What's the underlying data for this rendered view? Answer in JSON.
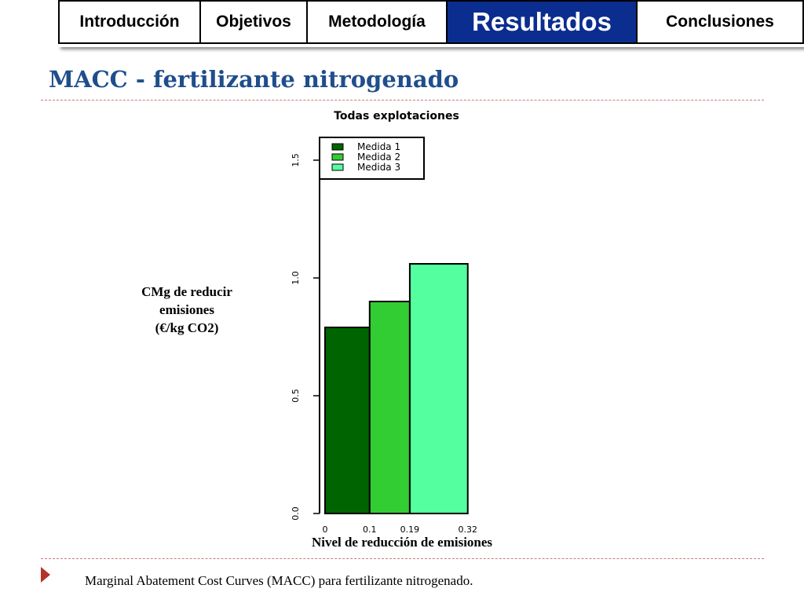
{
  "nav": {
    "tabs": [
      {
        "label": "Introducción",
        "active": false
      },
      {
        "label": "Objetivos",
        "active": false
      },
      {
        "label": "Metodología",
        "active": false
      },
      {
        "label": "Resultados",
        "active": true
      },
      {
        "label": "Conclusiones",
        "active": false
      }
    ]
  },
  "slide": {
    "title": "MACC - fertilizante nitrogenado",
    "ylabel_lines": [
      "CMg de reducir",
      "emisiones",
      "(€/kg CO2)"
    ],
    "xlabel": "Nivel de reducción de emisiones",
    "caption": "Marginal Abatement Cost Curves (MACC) para fertilizante nitrogenado."
  },
  "colors": {
    "title": "#1f4e8c",
    "active_tab": "#0b2d8f",
    "bullet": "#b5332b",
    "rule": "#c97a7a"
  },
  "chart_data": {
    "type": "bar",
    "title": "Todas explotaciones",
    "xlabel": "Nivel de reducción de emisiones",
    "ylabel": "CMg de reducir emisiones (€/kg CO2)",
    "ylim": [
      0,
      1.6
    ],
    "y_ticks": [
      0.0,
      0.5,
      1.0,
      1.5
    ],
    "y_tick_labels": [
      "0.0",
      "0.5",
      "1.0",
      "1.5"
    ],
    "x_ticks": [
      0,
      0.1,
      0.19,
      0.32
    ],
    "x_tick_labels": [
      "0",
      "0.1",
      "0.19",
      "0.32"
    ],
    "legend_position": "top-left",
    "series": [
      {
        "name": "Medida 1",
        "x_start": 0,
        "x_end": 0.1,
        "value": 0.79,
        "color": "#006400"
      },
      {
        "name": "Medida 2",
        "x_start": 0.1,
        "x_end": 0.19,
        "value": 0.9,
        "color": "#32cd32"
      },
      {
        "name": "Medida 3",
        "x_start": 0.19,
        "x_end": 0.32,
        "value": 1.06,
        "color": "#54ff9f"
      }
    ]
  }
}
